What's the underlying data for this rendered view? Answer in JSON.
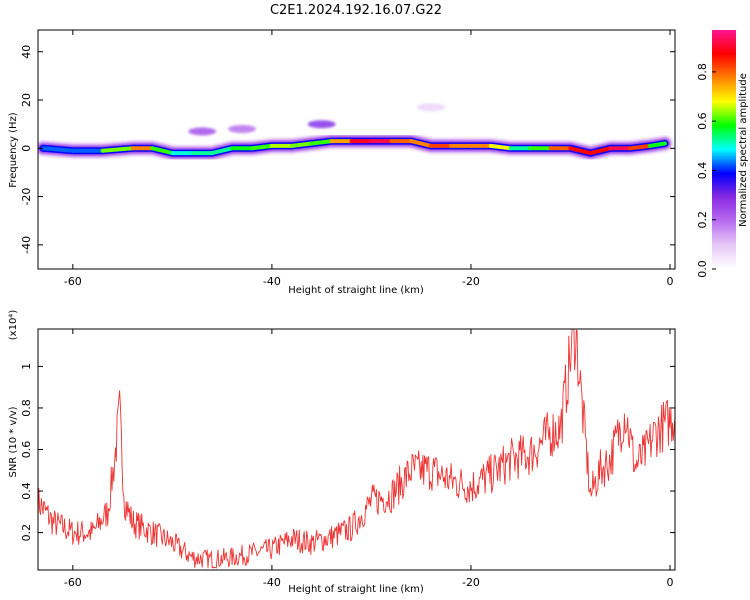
{
  "title": "C2E1.2024.192.16.07.G22",
  "chart_data": [
    {
      "type": "heatmap",
      "xlabel": "Height of straight line (km)",
      "ylabel": "Frequency (Hz)",
      "xlim": [
        -63.5,
        0.5
      ],
      "ylim": [
        -50,
        49
      ],
      "xticks": [
        -60,
        -40,
        -20,
        0
      ],
      "yticks": [
        -40,
        -20,
        0,
        20,
        40
      ],
      "colorbar": {
        "label": "Normalized spectral amplitude",
        "range": [
          0,
          0.97
        ],
        "ticks": [
          0.0,
          0.2,
          0.4,
          0.6,
          0.8
        ],
        "colors": [
          "#ffffff",
          "#e6c8f7",
          "#b86cf0",
          "#8a2be2",
          "#0000ff",
          "#00ffff",
          "#00ff00",
          "#ffff00",
          "#ff8000",
          "#ff0000",
          "#ff1493"
        ]
      },
      "ridge": {
        "x": [
          -63,
          -60,
          -57,
          -54,
          -52,
          -50,
          -48,
          -46,
          -44,
          -42,
          -40,
          -38,
          -36,
          -34,
          -32,
          -30,
          -28,
          -26,
          -24,
          -22,
          -20,
          -18,
          -16,
          -14,
          -12,
          -10,
          -8,
          -6,
          -4,
          -2,
          -0.5
        ],
        "frequency": [
          0,
          -1,
          -1,
          0,
          0,
          -2,
          -2,
          -2,
          0,
          0,
          1,
          1,
          2,
          3,
          3,
          3,
          3,
          3,
          1,
          1,
          1,
          1,
          0,
          0,
          0,
          0,
          -2,
          0,
          0,
          1,
          2
        ],
        "amplitude": [
          0.45,
          0.4,
          0.45,
          0.8,
          0.75,
          0.45,
          0.55,
          0.5,
          0.55,
          0.6,
          0.6,
          0.7,
          0.55,
          0.65,
          0.85,
          0.95,
          0.9,
          0.7,
          0.85,
          0.8,
          0.75,
          0.8,
          0.55,
          0.5,
          0.7,
          0.9,
          0.85,
          0.9,
          0.95,
          0.7,
          0.45
        ]
      },
      "blobs": [
        {
          "x": -47,
          "frequency": 7,
          "amplitude": 0.25
        },
        {
          "x": -43,
          "frequency": 8,
          "amplitude": 0.2
        },
        {
          "x": -35,
          "frequency": 10,
          "amplitude": 0.3
        },
        {
          "x": -24,
          "frequency": 17,
          "amplitude": 0.08
        }
      ]
    },
    {
      "type": "line",
      "xlabel": "Height of straight line (km)",
      "ylabel": "SNR (10 * v/v)",
      "y_multiplier": "(x10⁴)",
      "xlim": [
        -63.5,
        0.5
      ],
      "ylim": [
        0.02,
        1.18
      ],
      "xticks": [
        -60,
        -40,
        -20,
        0
      ],
      "yticks": [
        0.2,
        0.4,
        0.6,
        0.8,
        1.0
      ],
      "color": "#ee3333",
      "series": [
        {
          "x": [
            -63.5,
            -62,
            -60,
            -58,
            -56.5,
            -55.8,
            -55.3,
            -54.8,
            -54,
            -52,
            -50,
            -48,
            -46,
            -44,
            -42,
            -40,
            -38,
            -36,
            -34,
            -32,
            -30,
            -28,
            -26,
            -24,
            -22,
            -20,
            -18,
            -16,
            -14,
            -12,
            -11,
            -10,
            -9.5,
            -9,
            -8,
            -7,
            -6,
            -5,
            -4.5,
            -3.5,
            -2.5,
            -1.5,
            -0.5,
            0.5
          ],
          "y": [
            0.35,
            0.25,
            0.2,
            0.2,
            0.3,
            0.55,
            0.78,
            0.35,
            0.25,
            0.2,
            0.15,
            0.08,
            0.07,
            0.08,
            0.1,
            0.12,
            0.17,
            0.15,
            0.18,
            0.22,
            0.35,
            0.38,
            0.5,
            0.5,
            0.45,
            0.42,
            0.48,
            0.55,
            0.58,
            0.68,
            0.7,
            1.05,
            1.18,
            0.9,
            0.38,
            0.5,
            0.55,
            0.7,
            0.78,
            0.52,
            0.58,
            0.68,
            0.72,
            0.76
          ]
        }
      ]
    }
  ]
}
